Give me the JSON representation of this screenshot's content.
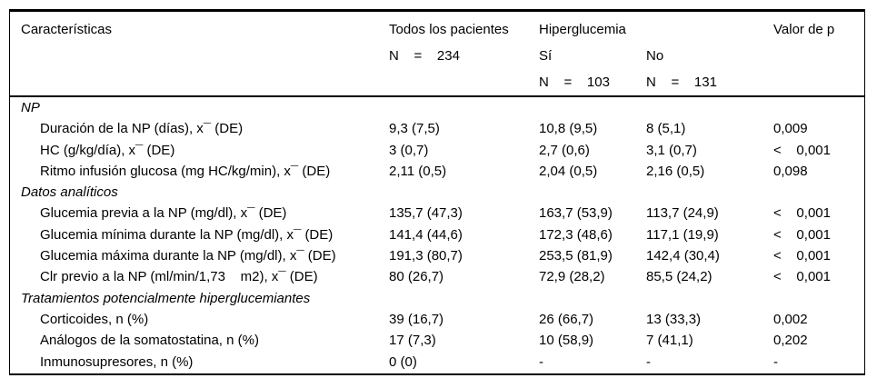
{
  "table": {
    "header": {
      "caracteristicas": "Características",
      "todos": "Todos los pacientes",
      "todos_n": "N    =    234",
      "hiperglucemia": "Hiperglucemia",
      "si": "Sí",
      "si_n": "N    =    103",
      "no": "No",
      "no_n": "N    =    131",
      "valor_p": "Valor de p"
    },
    "sections": [
      {
        "title": "NP",
        "rows": [
          {
            "label": "Duración de la NP (días), x¯ (DE)",
            "todos": "9,3 (7,5)",
            "si": "10,8 (9,5)",
            "no": "8 (5,1)",
            "p": "0,009"
          },
          {
            "label": "HC (g/kg/día), x¯ (DE)",
            "todos": "3 (0,7)",
            "si": "2,7 (0,6)",
            "no": "3,1 (0,7)",
            "p": "<    0,001"
          },
          {
            "label": "Ritmo infusión glucosa (mg HC/kg/min), x¯ (DE)",
            "todos": "2,11 (0,5)",
            "si": "2,04 (0,5)",
            "no": "2,16 (0,5)",
            "p": "0,098"
          }
        ]
      },
      {
        "title": "Datos analíticos",
        "rows": [
          {
            "label": "Glucemia previa a la NP (mg/dl), x¯ (DE)",
            "todos": "135,7 (47,3)",
            "si": "163,7 (53,9)",
            "no": "113,7 (24,9)",
            "p": "<    0,001"
          },
          {
            "label": "Glucemia mínima durante la NP (mg/dl), x¯ (DE)",
            "todos": "141,4 (44,6)",
            "si": "172,3 (48,6)",
            "no": "117,1 (19,9)",
            "p": "<    0,001"
          },
          {
            "label": "Glucemia máxima durante la NP (mg/dl), x¯ (DE)",
            "todos": "191,3 (80,7)",
            "si": "253,5 (81,9)",
            "no": "142,4 (30,4)",
            "p": "<    0,001"
          },
          {
            "label": "Clr previo a la NP (ml/min/1,73    m2), x¯ (DE)",
            "todos": "80 (26,7)",
            "si": "72,9 (28,2)",
            "no": "85,5 (24,2)",
            "p": "<    0,001"
          }
        ]
      },
      {
        "title": "Tratamientos potencialmente hiperglucemiantes",
        "rows": [
          {
            "label": "Corticoides, n (%)",
            "todos": "39 (16,7)",
            "si": "26 (66,7)",
            "no": "13 (33,3)",
            "p": "0,002"
          },
          {
            "label": "Análogos de la somatostatina, n (%)",
            "todos": "17 (7,3)",
            "si": "10 (58,9)",
            "no": "7 (41,1)",
            "p": "0,202"
          },
          {
            "label": "Inmunosupresores, n (%)",
            "todos": "0 (0)",
            "si": "-",
            "no": "-",
            "p": "-"
          }
        ]
      }
    ]
  }
}
